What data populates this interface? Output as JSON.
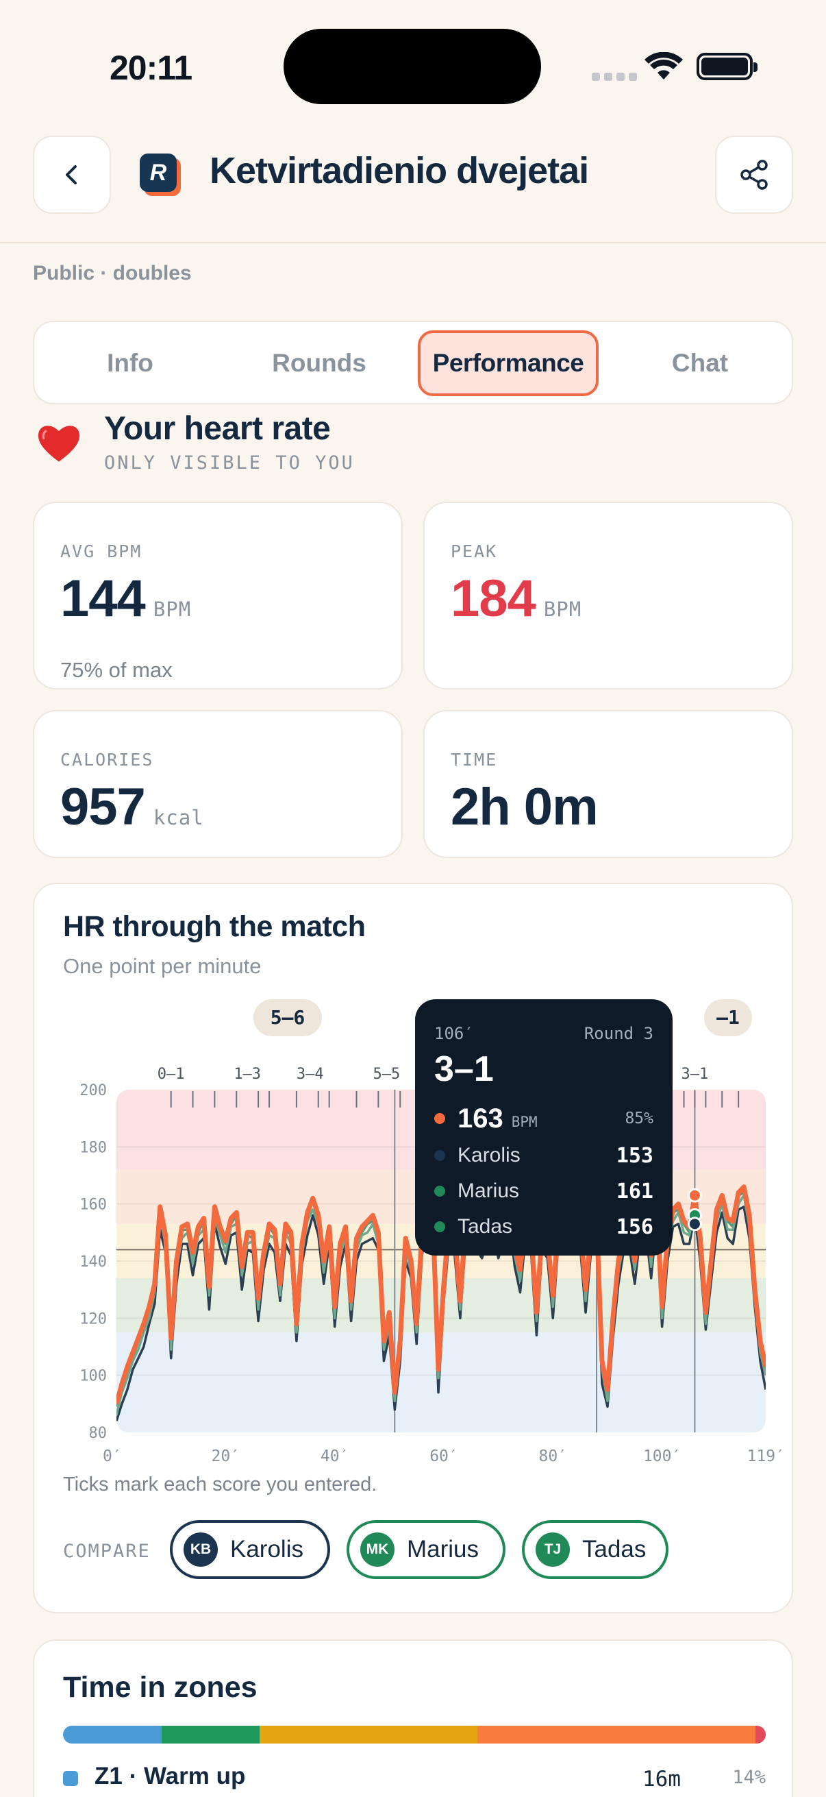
{
  "status_bar": {
    "time": "20:11"
  },
  "header": {
    "title": "Ketvirtadienio dvejetai",
    "logo_letter": "R"
  },
  "subtitle": "Public · doubles",
  "tabs": [
    {
      "label": "Info",
      "active": false
    },
    {
      "label": "Rounds",
      "active": false
    },
    {
      "label": "Performance",
      "active": true
    },
    {
      "label": "Chat",
      "active": false
    }
  ],
  "heart_rate": {
    "title": "Your heart rate",
    "subtitle": "ONLY VISIBLE TO YOU"
  },
  "stats": {
    "avg": {
      "label": "AVG BPM",
      "value": "144",
      "unit": "BPM",
      "note": "75% of max"
    },
    "peak": {
      "label": "PEAK",
      "value": "184",
      "unit": "BPM"
    },
    "calories": {
      "label": "CALORIES",
      "value": "957",
      "unit": "kcal"
    },
    "time": {
      "label": "TIME",
      "value": "2h 0m"
    }
  },
  "chart": {
    "title": "HR through the match",
    "subtitle": "One point per minute",
    "note": "Ticks mark each score you entered.",
    "round_pills": [
      "5–6",
      "–1"
    ],
    "tooltip": {
      "minute": "106′",
      "round": "Round 3",
      "score": "3–1",
      "you_bpm": "163",
      "bpm_unit": "BPM",
      "pct": "85%",
      "rows": [
        {
          "name": "Karolis",
          "value": "153",
          "color": "#1B3550"
        },
        {
          "name": "Marius",
          "value": "161",
          "color": "#1F8A58"
        },
        {
          "name": "Tadas",
          "value": "156",
          "color": "#1F8A58"
        }
      ]
    }
  },
  "chart_data": {
    "type": "line",
    "title": "HR through the match",
    "xlabel": "",
    "ylabel": "",
    "xlim": [
      0,
      119
    ],
    "ylim": [
      80,
      200
    ],
    "x_ticks": [
      "0′",
      "20′",
      "40′",
      "60′",
      "80′",
      "100′",
      "119′"
    ],
    "y_ticks": [
      "200",
      "180",
      "160",
      "140",
      "120",
      "100",
      "80"
    ],
    "avg_line": 144,
    "score_labels": [
      {
        "label": "0–1",
        "x": 10
      },
      {
        "label": "1–3",
        "x": 24
      },
      {
        "label": "3–4",
        "x": 35.5
      },
      {
        "label": "5–5",
        "x": 49.5
      },
      {
        "label": "3–1",
        "x": 106
      }
    ],
    "score_ticks": [
      10,
      14,
      18,
      22,
      26,
      28,
      33,
      37,
      39,
      44,
      48,
      52,
      56,
      60,
      64,
      68,
      72,
      76,
      80,
      84,
      88,
      92,
      96,
      100,
      104,
      106,
      108,
      111,
      114
    ],
    "round_markers": [
      51,
      88,
      106
    ],
    "zones": [
      {
        "from": 80,
        "to": 115,
        "color": "#E7F0F8"
      },
      {
        "from": 115,
        "to": 134,
        "color": "#E4EEE0"
      },
      {
        "from": 134,
        "to": 153,
        "color": "#FAF1D8"
      },
      {
        "from": 153,
        "to": 172,
        "color": "#FCE7DC"
      },
      {
        "from": 172,
        "to": 200,
        "color": "#FBE1E2"
      }
    ],
    "series": [
      {
        "name": "You",
        "color": "#F26A3D",
        "values": [
          90,
          97,
          103,
          108,
          113,
          118,
          124,
          132,
          159,
          149,
          113,
          140,
          152,
          153,
          143,
          152,
          155,
          131,
          159,
          152,
          147,
          155,
          157,
          138,
          150,
          150,
          127,
          143,
          153,
          151,
          132,
          153,
          150,
          118,
          146,
          157,
          162,
          156,
          140,
          152,
          124,
          146,
          152,
          126,
          148,
          152,
          154,
          156,
          150,
          112,
          122,
          94,
          112,
          148,
          140,
          118,
          150,
          160,
          154,
          102,
          132,
          155,
          150,
          126,
          154,
          161,
          150,
          148,
          155,
          156,
          148,
          155,
          160,
          145,
          137,
          155,
          150,
          122,
          150,
          148,
          128,
          153,
          158,
          152,
          150,
          152,
          130,
          150,
          155,
          105,
          95,
          120,
          140,
          150,
          152,
          140,
          155,
          158,
          142,
          160,
          124,
          148,
          158,
          160,
          154,
          152,
          163,
          148,
          122,
          140,
          158,
          163,
          155,
          154,
          164,
          166,
          156,
          130,
          112,
          103
        ],
        "points": 120
      },
      {
        "name": "Karolis",
        "color": "#2B3E52"
      },
      {
        "name": "Marius",
        "color": "#4E9A78"
      },
      {
        "name": "Tadas",
        "color": "#6DA88C"
      }
    ]
  },
  "compare": {
    "label": "COMPARE",
    "chips": [
      {
        "initials": "KB",
        "name": "Karolis",
        "color": "#1B3550"
      },
      {
        "initials": "MK",
        "name": "Marius",
        "color": "#1F8A58"
      },
      {
        "initials": "TJ",
        "name": "Tadas",
        "color": "#1F8A58"
      }
    ]
  },
  "zones": {
    "title": "Time in zones",
    "bar": [
      {
        "pct": 14,
        "color": "#4A9BD6"
      },
      {
        "pct": 14,
        "color": "#1F9A5C"
      },
      {
        "pct": 31,
        "color": "#E3A512"
      },
      {
        "pct": 39.5,
        "color": "#F97B3E"
      },
      {
        "pct": 1.5,
        "color": "#E34A5C"
      }
    ],
    "rows": [
      {
        "name": "Z1 · Warm up",
        "time": "16m",
        "pct": "14%",
        "color": "#4A9BD6"
      }
    ]
  }
}
